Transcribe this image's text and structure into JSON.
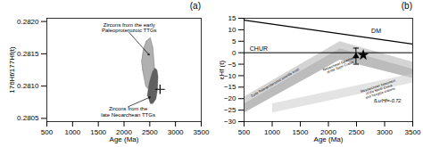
{
  "chart_data": [
    {
      "type": "polygon",
      "title": "(a)",
      "xlabel": "Age (Ma)",
      "ylabel": "176Hf/177Hf(t)",
      "xlim": [
        500,
        3500
      ],
      "ylim": [
        0.28045,
        0.28205
      ],
      "xticks": [
        500,
        1000,
        1500,
        2000,
        2500,
        3000,
        3500
      ],
      "yticks": [
        0.2805,
        {
          "value": 0.281,
          "label": "0.2810"
        },
        0.2815,
        {
          "value": 0.282,
          "label": "0.2820"
        }
      ],
      "series": [
        {
          "type": "polygon",
          "color": "#b0b0b0",
          "x": [
            2360,
            2420,
            2480,
            2560,
            2590,
            2560,
            2510,
            2430,
            2370,
            2340,
            2360
          ],
          "values": [
            0.28125,
            0.281,
            0.28095,
            0.28105,
            0.2813,
            0.2816,
            0.28175,
            0.2817,
            0.28155,
            0.28138,
            0.28125
          ]
        },
        {
          "type": "polygon",
          "color": "#606060",
          "x": [
            2460,
            2510,
            2560,
            2620,
            2650,
            2660,
            2640,
            2600,
            2550,
            2490,
            2460,
            2450,
            2460
          ],
          "values": [
            0.28085,
            0.28073,
            0.28073,
            0.2808,
            0.28095,
            0.28115,
            0.28125,
            0.28128,
            0.28122,
            0.28105,
            0.2809,
            0.28085,
            0.28085
          ]
        },
        {
          "type": "scatter",
          "marker": "plus",
          "color": "#000000",
          "x": [
            2700
          ],
          "values": [
            0.28095
          ]
        }
      ],
      "annotations": [
        {
          "text": "Zircons from the early\nPaleoproterozoic TTGs",
          "x": 2100,
          "y": 0.28183,
          "arrow_x": 2490,
          "arrow_y": 0.28148
        },
        {
          "text": "Zircons from the\nlate Neoarchean TTGs",
          "x": 2080,
          "y": 0.28068,
          "arrow_x": 2510,
          "arrow_y": 0.28083
        }
      ]
    },
    {
      "type": "polygon",
      "title": "(b)",
      "xlabel": "Age (Ma)",
      "ylabel": "εHf (t)",
      "xlim": [
        500,
        3500
      ],
      "ylim": [
        -30,
        15
      ],
      "xticks": [
        500,
        1000,
        1500,
        2000,
        2500,
        3000,
        3500
      ],
      "yticks": [
        -30,
        -25,
        -20,
        -15,
        -10,
        -5,
        0,
        5,
        10,
        15
      ],
      "series": [
        {
          "type": "polygon",
          "color": "#909090",
          "x": [
            500,
            2200,
            3500,
            3500,
            2200,
            500
          ],
          "values": [
            -22,
            2,
            -7,
            -11,
            -3,
            -26
          ]
        },
        {
          "type": "polygon",
          "color": "#b8b8b8",
          "x": [
            500,
            2200,
            3500,
            3500,
            2200,
            500
          ],
          "values": [
            -19,
            5,
            -4,
            -7,
            2,
            -22
          ]
        },
        {
          "type": "polygon",
          "color": "#d0d0d0",
          "x": [
            1000,
            3500,
            3500,
            1000
          ],
          "values": [
            -22,
            -9,
            -13,
            -26
          ]
        },
        {
          "type": "line",
          "color": "#000000",
          "x": [
            500,
            3500
          ],
          "values": [
            14.2,
            3.8
          ]
        },
        {
          "type": "hline",
          "color": "#000000",
          "values": [
            0
          ]
        },
        {
          "type": "scatter",
          "marker": "triangle",
          "color": "#000000",
          "x": [
            2490
          ],
          "values": [
            -1.5
          ],
          "yerr": [
            3.5
          ]
        },
        {
          "type": "scatter",
          "marker": "star",
          "color": "#000000",
          "x": [
            2620
          ],
          "values": [
            -1.0
          ]
        }
      ],
      "annotations": [
        {
          "text": "Early Paleoproterozoic juvenile crust",
          "x": 1050,
          "y": -13
        },
        {
          "text": "Neoarchean basement\nof the Tarim Craton",
          "x": 2200,
          "y": -5.5
        },
        {
          "text": "Mesoarchean basement\nof the North China\nand Yangtze cratons",
          "x": 2900,
          "y": -16
        },
        {
          "text": "DM",
          "x": 2850,
          "y": 9.5
        },
        {
          "text": "CHUR",
          "x": 600,
          "y": 1.0
        },
        {
          "text": "fLu/Hf=-0.72",
          "x": 3050,
          "y": -21
        }
      ]
    }
  ]
}
